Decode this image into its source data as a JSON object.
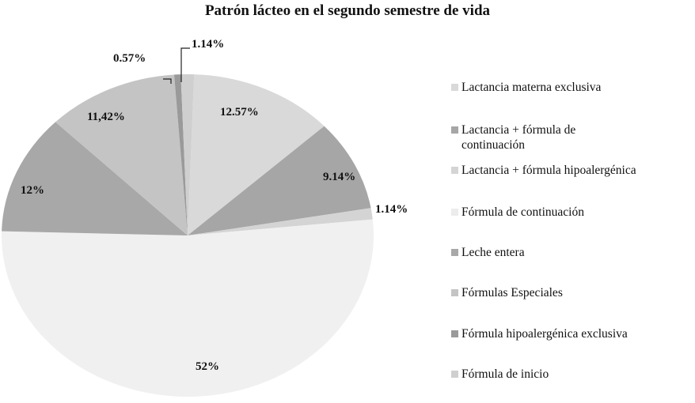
{
  "chart_data": {
    "type": "pie",
    "title": "Patrón lácteo en el segundo semestre de vida",
    "legend_position": "right",
    "slices": [
      {
        "label": "Lactancia materna exclusiva",
        "value": 12.57,
        "display": "12.57%",
        "color": "#d9d9d9"
      },
      {
        "label": "Lactancia + fórmula de continuación",
        "value": 9.14,
        "display": "9.14%",
        "color": "#a6a6a6"
      },
      {
        "label": "Lactancia + fórmula hipoalergénica",
        "value": 1.14,
        "display": "1.14%",
        "color": "#d4d4d4"
      },
      {
        "label": "Fórmula de continuación",
        "value": 52,
        "display": "52%",
        "color": "#f0f0f0"
      },
      {
        "label": "Leche entera",
        "value": 12,
        "display": "12%",
        "color": "#a8a8a8"
      },
      {
        "label": "Fórmulas Especiales",
        "value": 11.42,
        "display": "11,42%",
        "color": "#c4c4c4"
      },
      {
        "label": "Fórmula hipoalergénica exclusiva",
        "value": 0.57,
        "display": "0.57%",
        "color": "#9a9a9a"
      },
      {
        "label": "Fórmula de inicio",
        "value": 1.14,
        "display": "1.14%",
        "color": "#cfcfcf"
      }
    ]
  },
  "title": "Patrón lácteo en el segundo semestre de vida",
  "legend": [
    {
      "line1": "Lactancia materna exclusiva",
      "line2": "",
      "color": "#d9d9d9"
    },
    {
      "line1": "Lactancia + fórmula de",
      "line2": "continuación",
      "color": "#a6a6a6"
    },
    {
      "line1": "Lactancia + fórmula hipoalergénica",
      "line2": "",
      "color": "#d4d4d4"
    },
    {
      "line1": "Fórmula de continuación",
      "line2": "",
      "color": "#ececec"
    },
    {
      "line1": "Leche entera",
      "line2": "",
      "color": "#a8a8a8"
    },
    {
      "line1": "Fórmulas Especiales",
      "line2": "",
      "color": "#c4c4c4"
    },
    {
      "line1": "Fórmula hipoalergénica exclusiva",
      "line2": "",
      "color": "#9a9a9a"
    },
    {
      "line1": "Fórmula de inicio",
      "line2": "",
      "color": "#cfcfcf"
    }
  ],
  "labels": [
    "12.57%",
    "9.14%",
    "1.14%",
    "52%",
    "12%",
    "11,42%",
    "0.57%",
    "1.14%"
  ]
}
